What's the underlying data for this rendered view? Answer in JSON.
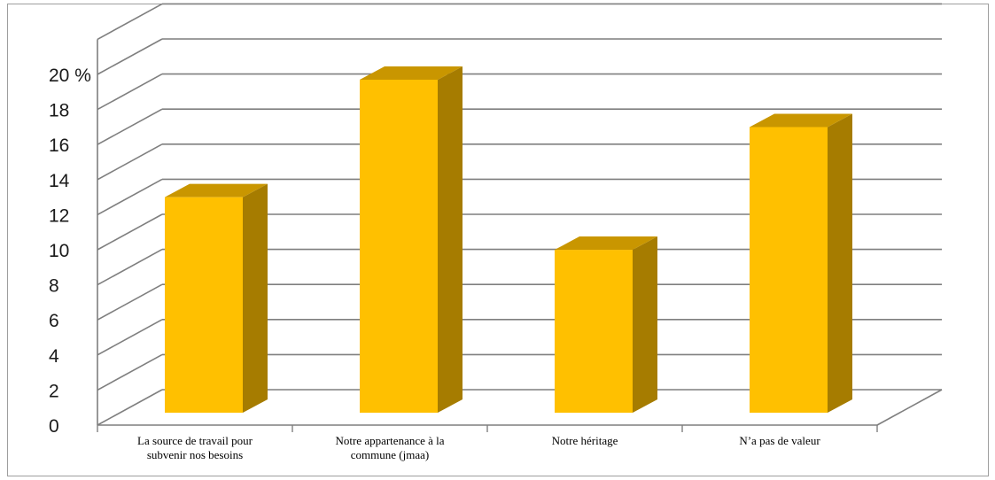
{
  "chart_data": {
    "type": "bar",
    "subtype": "3d-column",
    "categories": [
      [
        "La source de travail pour",
        "subvenir nos besoins"
      ],
      [
        "Notre appartenance à la",
        "commune (jmaa)"
      ],
      [
        "Notre héritage"
      ],
      [
        "N’a pas de valeur"
      ]
    ],
    "values": [
      13.3,
      20.0,
      10.3,
      17.3
    ],
    "yticks": [
      "0",
      "2",
      "4",
      "6",
      "8",
      "10",
      "12",
      "14",
      "16",
      "18",
      "20 %"
    ],
    "ylim": [
      0,
      20
    ],
    "title": "",
    "xlabel": "",
    "ylabel": "",
    "grid": true,
    "legend": "none",
    "colors": {
      "bar_front": "#FFC000",
      "bar_side": "#A67C00",
      "bar_top": "#C99600",
      "grid": "#7f7f7f"
    }
  }
}
